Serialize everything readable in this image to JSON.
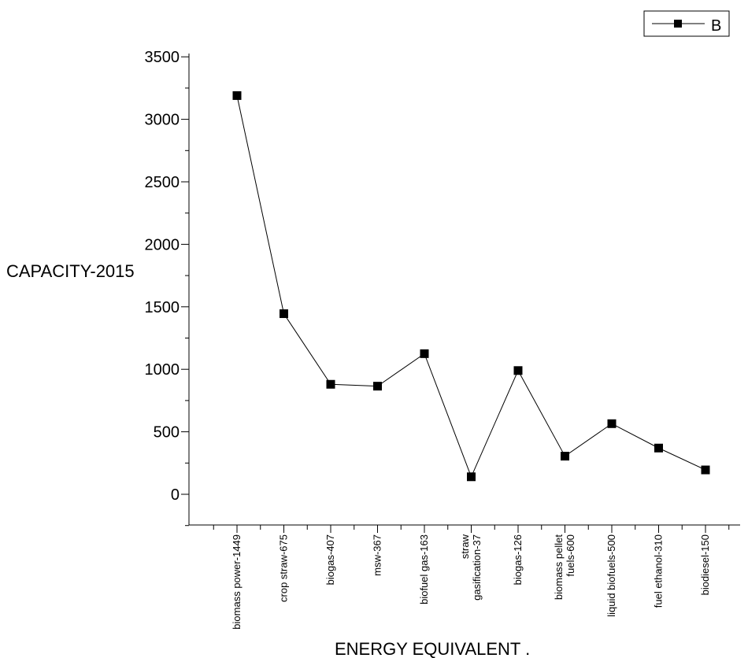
{
  "chart_data": {
    "type": "line",
    "title": "",
    "xlabel": "ENERGY EQUIVALENT .",
    "ylabel": "CAPACITY-2015",
    "ylim": [
      -250,
      3600
    ],
    "y_ticks": [
      0,
      500,
      1000,
      1500,
      2000,
      2500,
      3000,
      3500
    ],
    "y_tick_labels": [
      "0",
      "500",
      "1000",
      "1500",
      "2000",
      "2500",
      "3000",
      "3500"
    ],
    "grid": false,
    "legend": {
      "position": "top-right",
      "entries": [
        "B"
      ]
    },
    "categories": [
      "biomass power-1449",
      "crop straw-675",
      "biogas-407",
      "msw-367",
      "biofuel gas-163",
      "straw gasification-37",
      "biogas-126",
      "biomass pellet fuels-600",
      "liquid biofuels-500",
      "fuel ethanol-310",
      "biodiesel-150"
    ],
    "category_label_lines": [
      [
        "biomass power-1449"
      ],
      [
        "crop straw-675"
      ],
      [
        "biogas-407"
      ],
      [
        "msw-367"
      ],
      [
        "biofuel gas-163"
      ],
      [
        "straw",
        "gasification-37"
      ],
      [
        "biogas-126"
      ],
      [
        "biomass pellet",
        "fuels-600"
      ],
      [
        "liquid biofuels-500"
      ],
      [
        "fuel ethanol-310"
      ],
      [
        "biodiesel-150"
      ]
    ],
    "series": [
      {
        "name": "B",
        "values": [
          3190,
          1445,
          880,
          865,
          1125,
          140,
          990,
          305,
          565,
          370,
          195
        ],
        "color": "#000000",
        "marker": "square"
      }
    ]
  }
}
